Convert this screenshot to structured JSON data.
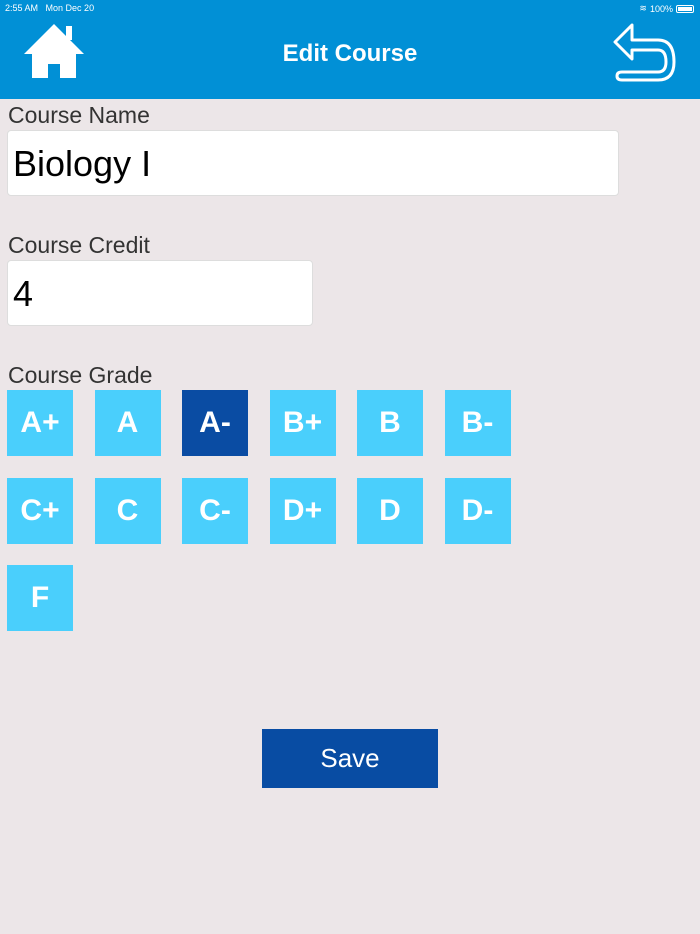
{
  "status_bar": {
    "time": "2:55 AM",
    "date": "Mon Dec 20",
    "battery": "100%"
  },
  "header": {
    "title": "Edit Course",
    "home_icon": "home-icon",
    "back_icon": "undo-arrow-icon"
  },
  "form": {
    "name_label": "Course Name",
    "name_value": "Biology I",
    "credit_label": "Course Credit",
    "credit_value": "4",
    "grade_label": "Course Grade",
    "grades": [
      "A+",
      "A",
      "A-",
      "B+",
      "B",
      "B-",
      "C+",
      "C",
      "C-",
      "D+",
      "D",
      "D-",
      "F"
    ],
    "selected_grade": "A-"
  },
  "save_label": "Save",
  "colors": {
    "header": "#0190d6",
    "grade": "#4acffc",
    "selected": "#0a4ca3",
    "save": "#084ca3",
    "background": "#ece6e8"
  }
}
